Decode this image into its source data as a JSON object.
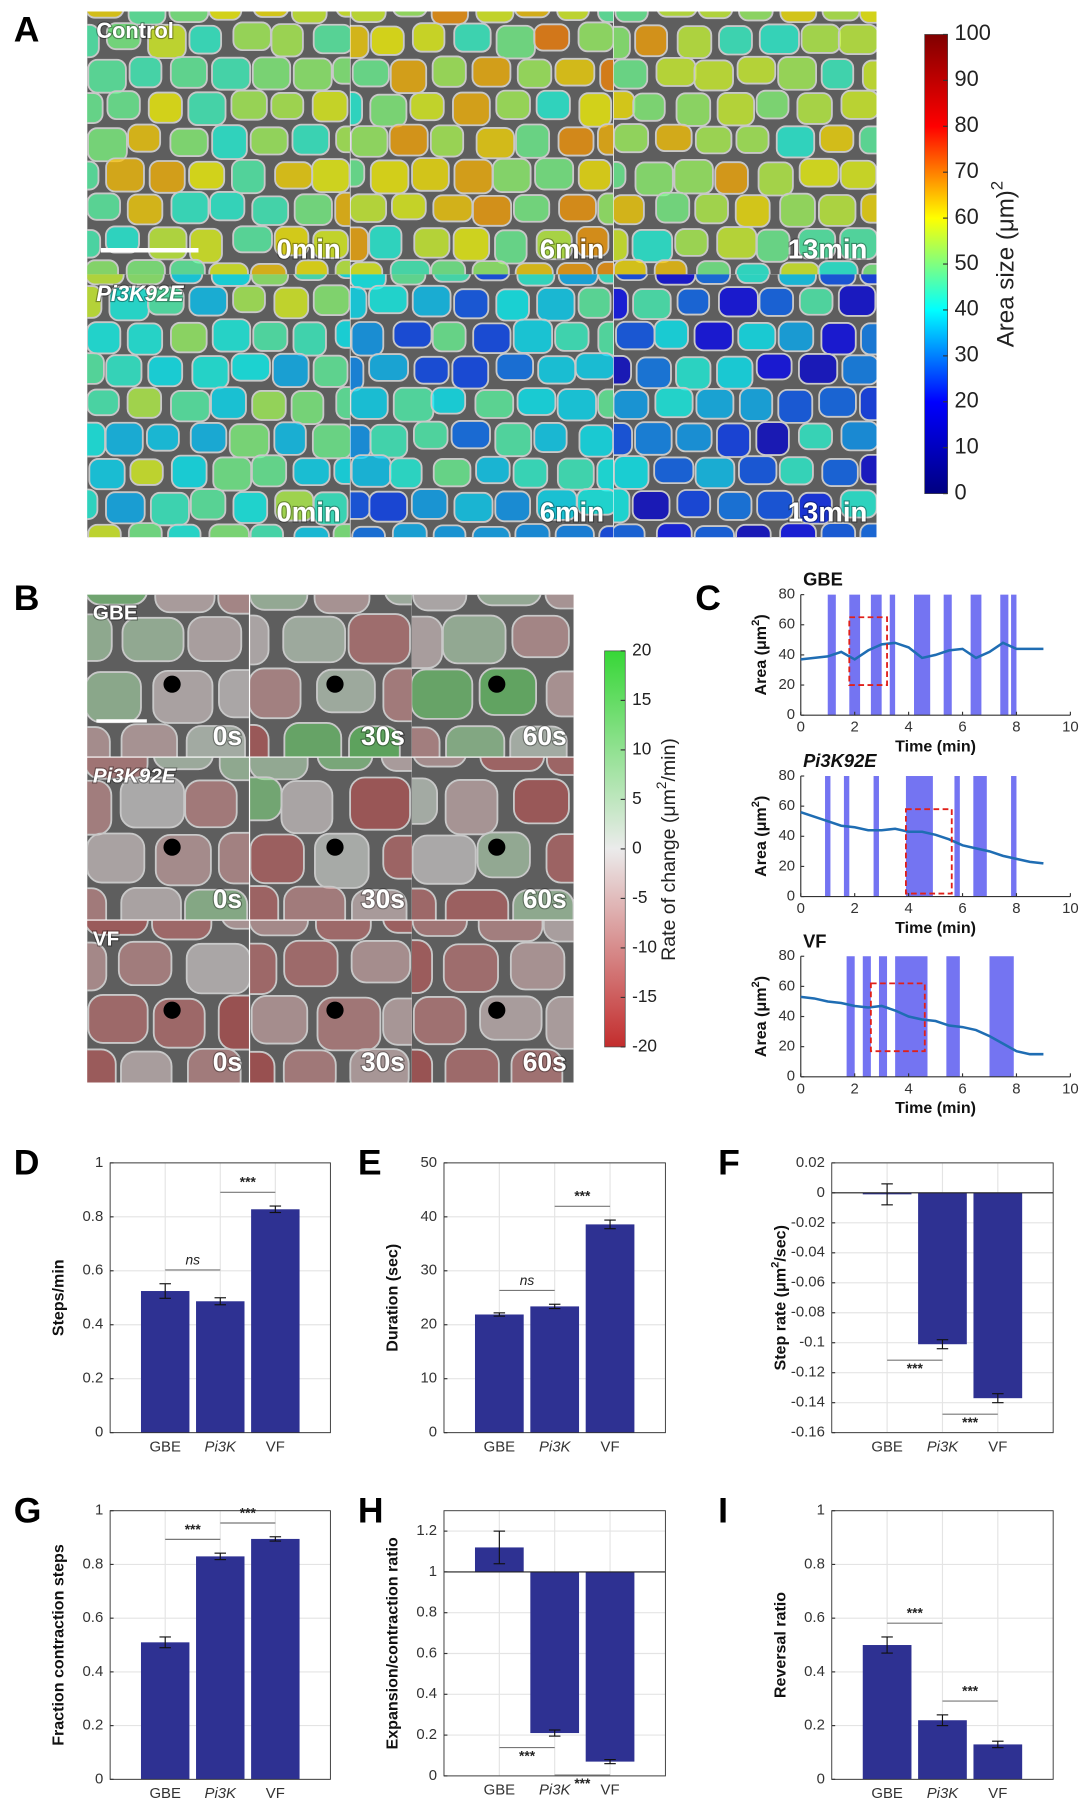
{
  "panel_labels": [
    "A",
    "B",
    "C",
    "D",
    "E",
    "F",
    "G",
    "H",
    "I"
  ],
  "panel_a": {
    "rows": [
      "Control",
      "Pi3K92E"
    ],
    "row_styles": [
      "normal",
      "italic"
    ],
    "times": [
      "0min",
      "6min",
      "13min"
    ],
    "colorbar": {
      "label": [
        "Area size (μm)",
        "2"
      ],
      "lim": [
        0,
        100
      ],
      "ticks": [
        0,
        10,
        20,
        30,
        40,
        50,
        60,
        70,
        80,
        90,
        100
      ]
    }
  },
  "panel_b": {
    "rows": [
      "GBE",
      "Pi3K92E",
      "VF"
    ],
    "row_styles": [
      "normal",
      "italic",
      "normal"
    ],
    "times": [
      "0s",
      "30s",
      "60s"
    ],
    "colorbar": {
      "label": [
        "Rate of change (μm",
        "2",
        "/min)"
      ],
      "lim": [
        -20,
        20
      ],
      "ticks": [
        -20,
        -15,
        -10,
        -5,
        0,
        5,
        10,
        15,
        20
      ]
    }
  },
  "chart_data": [
    {
      "type": "line",
      "title": "GBE",
      "title_style": "normal",
      "x": [
        0,
        0.5,
        1,
        1.5,
        2,
        2.5,
        3,
        3.5,
        4,
        4.5,
        5,
        5.5,
        6,
        6.5,
        7,
        7.5,
        8,
        8.5,
        9
      ],
      "values": [
        37,
        38,
        39,
        42,
        37,
        43,
        47,
        48,
        45,
        38,
        40,
        43,
        44,
        38,
        42,
        48,
        44,
        44,
        44
      ],
      "color": "#1f6db3",
      "shade_color": "#7474f2",
      "shaded": [
        [
          1.0,
          1.3
        ],
        [
          1.8,
          2.2
        ],
        [
          2.6,
          3.0
        ],
        [
          3.3,
          3.5
        ],
        [
          4.2,
          4.8
        ],
        [
          5.3,
          5.6
        ],
        [
          6.3,
          6.7
        ],
        [
          7.4,
          7.7
        ],
        [
          7.8,
          8.0
        ]
      ],
      "highlight": {
        "x": [
          1.8,
          3.2
        ],
        "y": [
          20,
          65
        ]
      },
      "xlim": [
        0,
        10
      ],
      "xticks": [
        0,
        2,
        4,
        6,
        8,
        10
      ],
      "ylim": [
        0,
        80
      ],
      "yticks": [
        0,
        20,
        40,
        60,
        80
      ],
      "xlabel": "Time (min)",
      "ylabel": [
        "Area (μm",
        "2",
        ")"
      ]
    },
    {
      "type": "line",
      "title": "Pi3K92E",
      "title_style": "italic",
      "x": [
        0,
        0.5,
        1,
        1.5,
        2,
        2.5,
        3,
        3.5,
        4,
        4.5,
        5,
        5.5,
        6,
        6.5,
        7,
        7.5,
        8,
        8.5,
        9
      ],
      "values": [
        56,
        53,
        50,
        47,
        46,
        44,
        44,
        45,
        43,
        43,
        41,
        38,
        34,
        32,
        30,
        27,
        25,
        23,
        22
      ],
      "color": "#1f6db3",
      "shade_color": "#7474f2",
      "shaded": [
        [
          0.9,
          1.1
        ],
        [
          1.6,
          1.8
        ],
        [
          2.7,
          2.9
        ],
        [
          3.9,
          4.9
        ],
        [
          5.7,
          5.9
        ],
        [
          6.4,
          6.9
        ],
        [
          7.8,
          8.0
        ]
      ],
      "highlight": {
        "x": [
          3.9,
          5.6
        ],
        "y": [
          2,
          58
        ]
      },
      "xlim": [
        0,
        10
      ],
      "xticks": [
        0,
        2,
        4,
        6,
        8,
        10
      ],
      "ylim": [
        0,
        80
      ],
      "yticks": [
        0,
        20,
        40,
        60,
        80
      ],
      "xlabel": "Time (min)",
      "ylabel": [
        "Area (μm",
        "2",
        ")"
      ]
    },
    {
      "type": "line",
      "title": "VF",
      "title_style": "normal",
      "x": [
        0,
        0.5,
        1,
        1.5,
        2,
        2.5,
        3,
        3.5,
        4,
        4.5,
        5,
        5.5,
        6,
        6.5,
        7,
        7.5,
        8,
        8.5,
        9
      ],
      "values": [
        53,
        52,
        50,
        49,
        47,
        46,
        47,
        44,
        40,
        38,
        37,
        34,
        33,
        31,
        27,
        22,
        17,
        15,
        15
      ],
      "color": "#1f6db3",
      "shade_color": "#7474f2",
      "shaded": [
        [
          1.7,
          2.0
        ],
        [
          2.3,
          2.6
        ],
        [
          2.9,
          3.2
        ],
        [
          3.5,
          4.7
        ],
        [
          5.4,
          5.9
        ],
        [
          7.0,
          7.9
        ]
      ],
      "highlight": {
        "x": [
          2.6,
          4.6
        ],
        "y": [
          17,
          62
        ]
      },
      "xlim": [
        0,
        10
      ],
      "xticks": [
        0,
        2,
        4,
        6,
        8,
        10
      ],
      "ylim": [
        0,
        80
      ],
      "yticks": [
        0,
        20,
        40,
        60,
        80
      ],
      "xlabel": "Time (min)",
      "ylabel": [
        "Area (μm",
        "2",
        ")"
      ]
    },
    {
      "type": "bar",
      "categories": [
        "GBE",
        "Pi3K",
        "VF"
      ],
      "category_styles": [
        "normal",
        "italic",
        "normal"
      ],
      "values": [
        0.525,
        0.487,
        0.828
      ],
      "errors": [
        0.027,
        0.013,
        0.012
      ],
      "color": "#2e3192",
      "ylim": [
        0,
        1
      ],
      "yticks": [
        0,
        0.2,
        0.4,
        0.6,
        0.8,
        1
      ],
      "grid": true,
      "ylabel": [
        "Steps/min"
      ],
      "significance": [
        {
          "pair": [
            "GBE",
            "Pi3K"
          ],
          "label": "ns"
        },
        {
          "pair": [
            "Pi3K",
            "VF"
          ],
          "label": "***"
        }
      ]
    },
    {
      "type": "bar",
      "categories": [
        "GBE",
        "Pi3K",
        "VF"
      ],
      "category_styles": [
        "normal",
        "italic",
        "normal"
      ],
      "values": [
        21.9,
        23.4,
        38.6
      ],
      "errors": [
        0.3,
        0.4,
        0.8
      ],
      "color": "#2e3192",
      "ylim": [
        0,
        50
      ],
      "yticks": [
        0,
        10,
        20,
        30,
        40,
        50
      ],
      "grid": true,
      "ylabel": [
        "Duration (sec)"
      ],
      "significance": [
        {
          "pair": [
            "GBE",
            "Pi3K"
          ],
          "label": "ns"
        },
        {
          "pair": [
            "Pi3K",
            "VF"
          ],
          "label": "***"
        }
      ]
    },
    {
      "type": "bar",
      "categories": [
        "GBE",
        "Pi3K",
        "VF"
      ],
      "category_styles": [
        "normal",
        "italic",
        "normal"
      ],
      "values": [
        -0.001,
        -0.101,
        -0.137
      ],
      "errors": [
        0.007,
        0.003,
        0.003
      ],
      "color": "#2e3192",
      "baseline": 0,
      "ylim": [
        -0.16,
        0.02
      ],
      "yticks": [
        -0.16,
        -0.14,
        -0.12,
        -0.1,
        -0.08,
        -0.06,
        -0.04,
        -0.02,
        0,
        0.02
      ],
      "grid": true,
      "ylabel": [
        "Step rate (μm",
        "2",
        "/sec)"
      ],
      "significance": [
        {
          "pair": [
            "GBE",
            "Pi3K"
          ],
          "label": "***"
        },
        {
          "pair": [
            "Pi3K",
            "VF"
          ],
          "label": "***"
        }
      ]
    },
    {
      "type": "bar",
      "categories": [
        "GBE",
        "Pi3K",
        "VF"
      ],
      "category_styles": [
        "normal",
        "italic",
        "normal"
      ],
      "values": [
        0.51,
        0.83,
        0.895
      ],
      "errors": [
        0.02,
        0.012,
        0.008
      ],
      "color": "#2e3192",
      "ylim": [
        0,
        1
      ],
      "yticks": [
        0,
        0.2,
        0.4,
        0.6,
        0.8,
        1
      ],
      "grid": true,
      "ylabel": [
        "Fraction contraction steps"
      ],
      "significance": [
        {
          "pair": [
            "GBE",
            "Pi3K"
          ],
          "label": "***"
        },
        {
          "pair": [
            "Pi3K",
            "VF"
          ],
          "label": "***"
        }
      ]
    },
    {
      "type": "bar",
      "categories": [
        "GBE",
        "Pi3K",
        "VF"
      ],
      "category_styles": [
        "normal",
        "italic",
        "normal"
      ],
      "values": [
        1.12,
        0.21,
        0.07
      ],
      "errors": [
        0.08,
        0.015,
        0.01
      ],
      "color": "#2e3192",
      "baseline": 1,
      "ylim": [
        0,
        1.3
      ],
      "yticks": [
        0,
        0.2,
        0.4,
        0.6,
        0.8,
        1,
        1.2
      ],
      "grid": true,
      "ylabel": [
        "Expansion/contraction ratio"
      ],
      "significance": [
        {
          "pair": [
            "GBE",
            "Pi3K"
          ],
          "label": "***"
        },
        {
          "pair": [
            "Pi3K",
            "VF"
          ],
          "label": "***"
        }
      ]
    },
    {
      "type": "bar",
      "categories": [
        "GBE",
        "Pi3K",
        "VF"
      ],
      "category_styles": [
        "normal",
        "italic",
        "normal"
      ],
      "values": [
        0.5,
        0.22,
        0.13
      ],
      "errors": [
        0.03,
        0.02,
        0.012
      ],
      "color": "#2e3192",
      "ylim": [
        0,
        1
      ],
      "yticks": [
        0,
        0.2,
        0.4,
        0.6,
        0.8,
        1
      ],
      "grid": true,
      "ylabel": [
        "Reversal ratio"
      ],
      "significance": [
        {
          "pair": [
            "GBE",
            "Pi3K"
          ],
          "label": "***"
        },
        {
          "pair": [
            "Pi3K",
            "VF"
          ],
          "label": "***"
        }
      ]
    }
  ]
}
